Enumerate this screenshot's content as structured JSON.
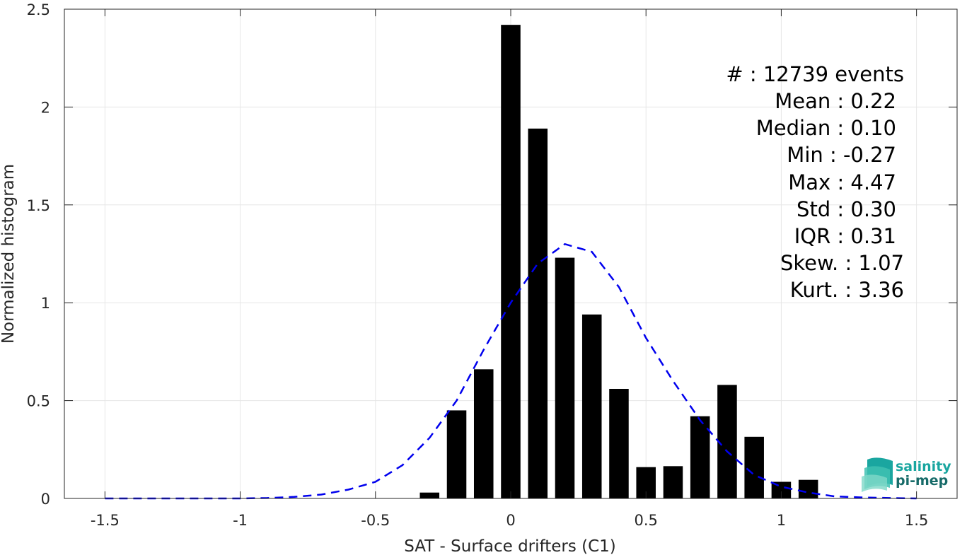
{
  "chart_data": {
    "type": "bar",
    "xlabel": "SAT - Surface drifters (C1)",
    "ylabel": "Normalized histogram",
    "xlim": [
      -1.65,
      1.65
    ],
    "ylim": [
      0,
      2.5
    ],
    "x_ticks": [
      "-1.5",
      "-1",
      "-0.5",
      "0",
      "0.5",
      "1",
      "1.5"
    ],
    "x_tick_values": [
      -1.5,
      -1,
      -0.5,
      0,
      0.5,
      1,
      1.5
    ],
    "y_ticks": [
      "0",
      "0.5",
      "1",
      "1.5",
      "2",
      "2.5"
    ],
    "y_tick_values": [
      0,
      0.5,
      1,
      1.5,
      2,
      2.5
    ],
    "grid": true,
    "bin_width": 0.1,
    "bars": {
      "x": [
        -0.3,
        -0.2,
        -0.1,
        0.0,
        0.1,
        0.2,
        0.3,
        0.4,
        0.5,
        0.6,
        0.7,
        0.8,
        0.9,
        1.0,
        1.1
      ],
      "values": [
        0.03,
        0.45,
        0.66,
        2.42,
        1.89,
        1.23,
        0.94,
        0.56,
        0.16,
        0.165,
        0.42,
        0.58,
        0.315,
        0.085,
        0.095
      ],
      "color": "#000000"
    },
    "fit_curve": {
      "style": "dashed",
      "color": "#0000ee",
      "x": [
        -1.5,
        -1.4,
        -1.3,
        -1.2,
        -1.1,
        -1.0,
        -0.9,
        -0.8,
        -0.7,
        -0.6,
        -0.5,
        -0.4,
        -0.3,
        -0.2,
        -0.1,
        0.0,
        0.1,
        0.2,
        0.3,
        0.4,
        0.5,
        0.6,
        0.7,
        0.8,
        0.9,
        1.0,
        1.1,
        1.2,
        1.3,
        1.4,
        1.5
      ],
      "y": [
        0.0,
        0.0,
        0.0,
        0.0,
        0.0,
        0.0,
        0.002,
        0.008,
        0.02,
        0.045,
        0.085,
        0.17,
        0.31,
        0.5,
        0.76,
        1.0,
        1.2,
        1.3,
        1.26,
        1.08,
        0.82,
        0.6,
        0.4,
        0.24,
        0.12,
        0.06,
        0.03,
        0.01,
        0.005,
        0.002,
        0.0
      ]
    },
    "stats": {
      "events": "#  : 12739 events",
      "mean": "Mean : 0.22",
      "median": "Median : 0.10",
      "min": "Min : -0.27",
      "max": "Max : 4.47",
      "std": "Std : 0.30",
      "iqr": "IQR : 0.31",
      "skew": "Skew. : 1.07",
      "kurt": "Kurt. : 3.36"
    },
    "logo": {
      "line1": "salinity",
      "line2": "pi-mep",
      "color1": "#1aa6a0",
      "color2": "#176b69"
    }
  }
}
